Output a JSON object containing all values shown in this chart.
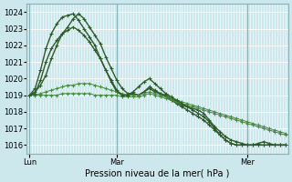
{
  "xlabel": "Pression niveau de la mer( hPa )",
  "bg_color": "#cce8ec",
  "grid_color": "#ffffff",
  "ylim": [
    1015.5,
    1024.5
  ],
  "yticks": [
    1016,
    1017,
    1018,
    1019,
    1020,
    1021,
    1022,
    1023,
    1024
  ],
  "n_points": 48,
  "day_positions": [
    0,
    16,
    40
  ],
  "day_labels": [
    "Lun",
    "Mar",
    "Mer"
  ],
  "vline_positions": [
    0,
    16,
    40
  ],
  "series": [
    {
      "values": [
        1019.0,
        1019.2,
        1019.6,
        1020.2,
        1021.2,
        1022.0,
        1022.7,
        1023.1,
        1023.6,
        1023.9,
        1023.6,
        1023.1,
        1022.6,
        1022.1,
        1021.3,
        1020.6,
        1019.9,
        1019.4,
        1019.1,
        1019.1,
        1019.0,
        1019.2,
        1019.5,
        1019.3,
        1019.1,
        1019.0,
        1018.8,
        1018.6,
        1018.4,
        1018.3,
        1018.2,
        1018.1,
        1017.9,
        1017.5,
        1017.1,
        1016.8,
        1016.5,
        1016.3,
        1016.2,
        1016.1,
        1016.0,
        1016.0,
        1016.1,
        1016.2,
        1016.1,
        1016.0,
        1016.0,
        1016.0
      ],
      "color": "#2d5a27",
      "lw": 1.0
    },
    {
      "values": [
        1019.0,
        1019.4,
        1020.5,
        1021.8,
        1022.7,
        1023.3,
        1023.7,
        1023.8,
        1023.9,
        1023.5,
        1023.0,
        1022.5,
        1022.0,
        1021.2,
        1020.5,
        1019.8,
        1019.2,
        1019.0,
        1019.0,
        1019.1,
        1019.0,
        1019.2,
        1019.4,
        1019.2,
        1019.1,
        1018.9,
        1018.7,
        1018.5,
        1018.3,
        1018.1,
        1017.9,
        1017.7,
        1017.5,
        1017.2,
        1016.9,
        1016.6,
        1016.3,
        1016.1,
        1016.0,
        1016.0,
        1016.0,
        1016.0,
        1016.0,
        1016.0,
        1016.0,
        1016.0,
        1016.0,
        1016.0
      ],
      "color": "#2d5a27",
      "lw": 1.0
    },
    {
      "values": [
        1019.0,
        1019.0,
        1019.1,
        1019.2,
        1019.3,
        1019.4,
        1019.5,
        1019.6,
        1019.6,
        1019.7,
        1019.7,
        1019.7,
        1019.6,
        1019.5,
        1019.4,
        1019.3,
        1019.2,
        1019.1,
        1019.0,
        1019.0,
        1019.0,
        1019.1,
        1019.2,
        1019.1,
        1019.0,
        1018.9,
        1018.8,
        1018.7,
        1018.6,
        1018.5,
        1018.4,
        1018.3,
        1018.2,
        1018.1,
        1018.0,
        1017.9,
        1017.8,
        1017.7,
        1017.6,
        1017.5,
        1017.4,
        1017.3,
        1017.2,
        1017.1,
        1017.0,
        1016.9,
        1016.8,
        1016.7
      ],
      "color": "#4a8a40",
      "lw": 0.7
    },
    {
      "values": [
        1019.0,
        1019.0,
        1019.0,
        1019.0,
        1019.0,
        1019.0,
        1019.1,
        1019.1,
        1019.1,
        1019.1,
        1019.1,
        1019.1,
        1019.0,
        1019.0,
        1019.0,
        1019.0,
        1019.0,
        1018.9,
        1018.9,
        1018.9,
        1018.9,
        1019.0,
        1019.1,
        1019.0,
        1018.9,
        1018.8,
        1018.7,
        1018.6,
        1018.5,
        1018.4,
        1018.3,
        1018.2,
        1018.1,
        1018.0,
        1017.9,
        1017.8,
        1017.7,
        1017.6,
        1017.5,
        1017.4,
        1017.3,
        1017.2,
        1017.1,
        1017.0,
        1016.9,
        1016.8,
        1016.7,
        1016.6
      ],
      "color": "#4a8a40",
      "lw": 0.7
    },
    {
      "values": [
        1019.0,
        1019.1,
        1019.9,
        1021.0,
        1021.8,
        1022.3,
        1022.7,
        1022.9,
        1023.1,
        1022.9,
        1022.6,
        1022.2,
        1021.7,
        1021.2,
        1020.5,
        1019.9,
        1019.3,
        1019.0,
        1019.0,
        1019.2,
        1019.5,
        1019.8,
        1020.0,
        1019.7,
        1019.4,
        1019.1,
        1018.9,
        1018.7,
        1018.5,
        1018.3,
        1018.1,
        1017.9,
        1017.7,
        1017.4,
        1017.0,
        1016.6,
        1016.3,
        1016.1,
        1016.0,
        1016.0,
        1016.0,
        1016.0,
        1016.0,
        1016.0,
        1016.0,
        1016.0,
        1016.0,
        1016.0
      ],
      "color": "#2d5a27",
      "lw": 1.0
    }
  ],
  "spine_color": "#8ab0b8",
  "vline_color": "#8ab0b8"
}
